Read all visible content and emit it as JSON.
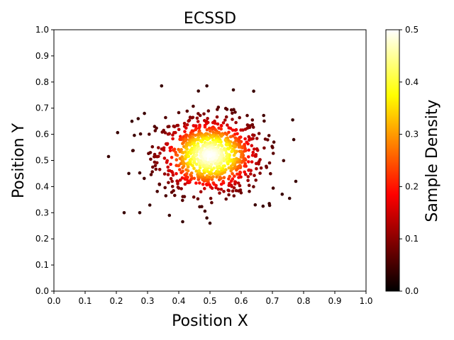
{
  "chart_data": {
    "type": "scatter",
    "title": "ECSSD",
    "xlabel": "Position X",
    "ylabel": "Position Y",
    "xlim": [
      0,
      1
    ],
    "ylim": [
      0,
      1
    ],
    "xticks": [
      "0.0",
      "0.1",
      "0.2",
      "0.3",
      "0.4",
      "0.5",
      "0.6",
      "0.7",
      "0.8",
      "0.9",
      "1.0"
    ],
    "yticks": [
      "0.0",
      "0.1",
      "0.2",
      "0.3",
      "0.4",
      "0.5",
      "0.6",
      "0.7",
      "0.8",
      "0.9",
      "1.0"
    ],
    "grid": false,
    "colormap": "hot",
    "colorbar": {
      "label": "Sample Density",
      "range": [
        0,
        0.5
      ],
      "ticks": [
        "0.0",
        "0.1",
        "0.2",
        "0.3",
        "0.4",
        "0.5"
      ]
    },
    "distribution": {
      "description_center": [
        0.5,
        0.52
      ],
      "n_points": 900
    },
    "outliers": [
      [
        0.175,
        0.515
      ],
      [
        0.225,
        0.3
      ],
      [
        0.275,
        0.3
      ],
      [
        0.345,
        0.785
      ],
      [
        0.49,
        0.785
      ],
      [
        0.575,
        0.77
      ],
      [
        0.64,
        0.765
      ],
      [
        0.37,
        0.29
      ],
      [
        0.5,
        0.26
      ],
      [
        0.49,
        0.28
      ],
      [
        0.645,
        0.33
      ],
      [
        0.67,
        0.325
      ],
      [
        0.69,
        0.335
      ],
      [
        0.755,
        0.355
      ],
      [
        0.775,
        0.42
      ],
      [
        0.765,
        0.655
      ],
      [
        0.24,
        0.45
      ],
      [
        0.25,
        0.65
      ],
      [
        0.27,
        0.66
      ],
      [
        0.29,
        0.68
      ]
    ]
  }
}
